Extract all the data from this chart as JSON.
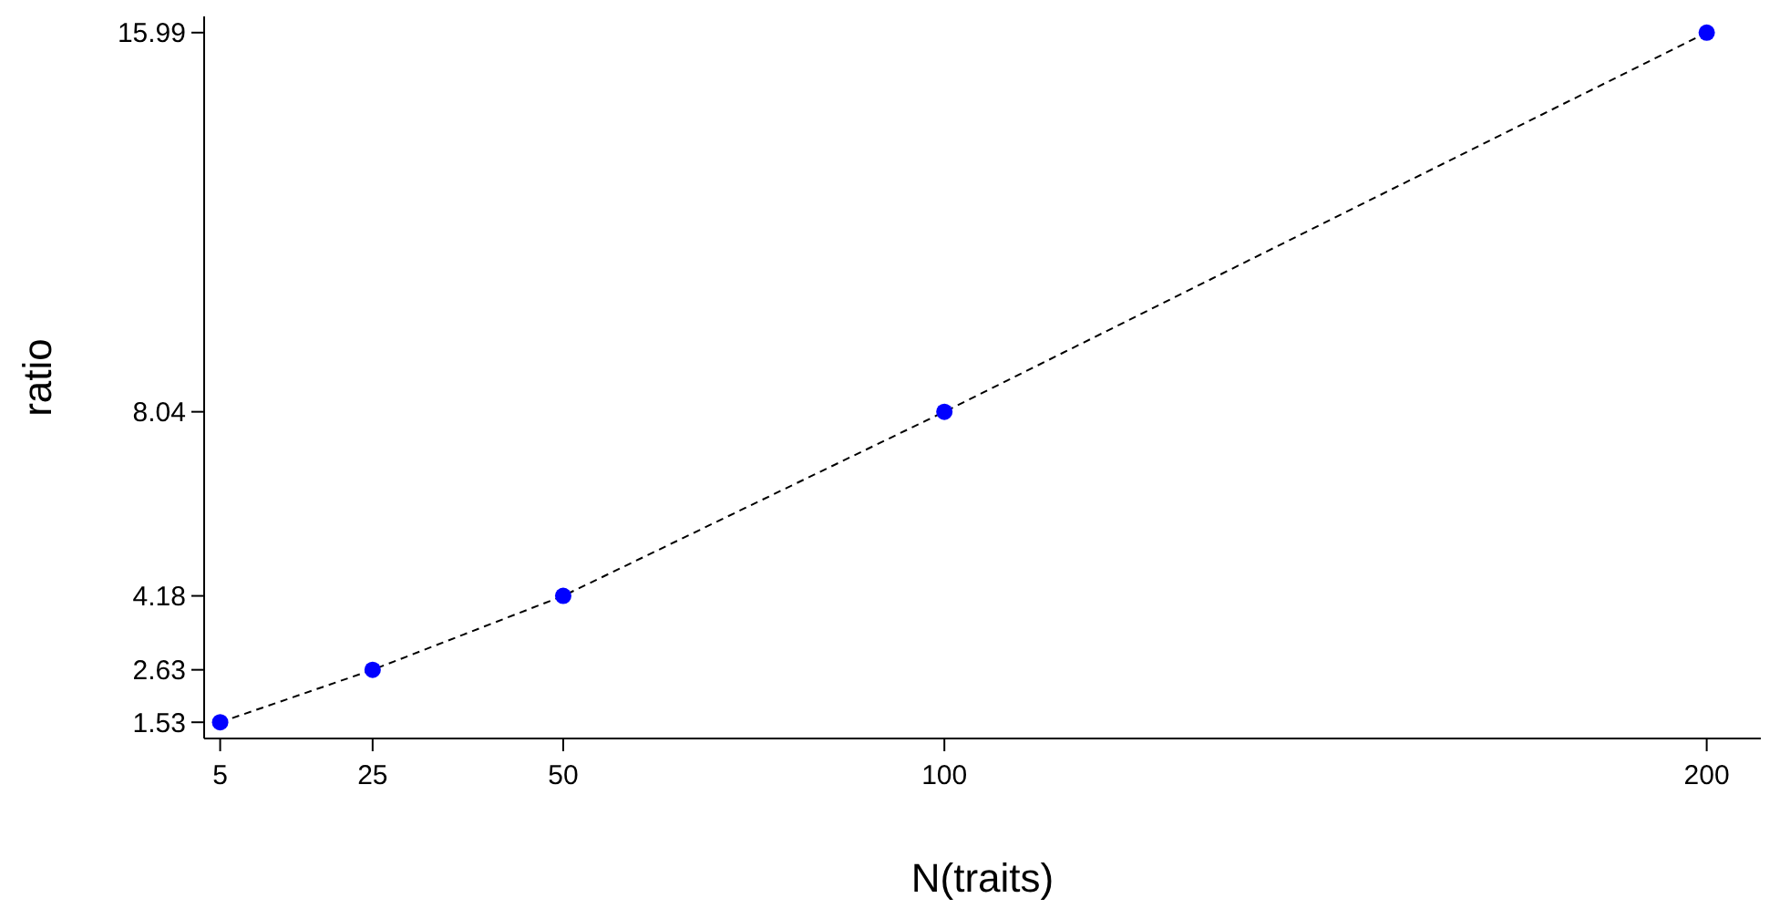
{
  "chart_data": {
    "type": "line",
    "xlabel": "N(traits)",
    "ylabel": "ratio",
    "x": [
      5,
      25,
      50,
      100,
      200
    ],
    "series": [
      {
        "color": "#0000ff",
        "values": [
          1.53,
          2.63,
          4.18,
          8.04,
          15.99
        ]
      }
    ],
    "xlim": [
      2.9,
      207.1
    ],
    "ylim": [
      1.19,
      16.33
    ],
    "xticks": [
      5,
      25,
      50,
      100,
      200
    ],
    "yticks": [
      1.53,
      2.63,
      4.18,
      8.04,
      15.99
    ],
    "marker": "circle",
    "line_style": "dashed",
    "grid": false
  }
}
